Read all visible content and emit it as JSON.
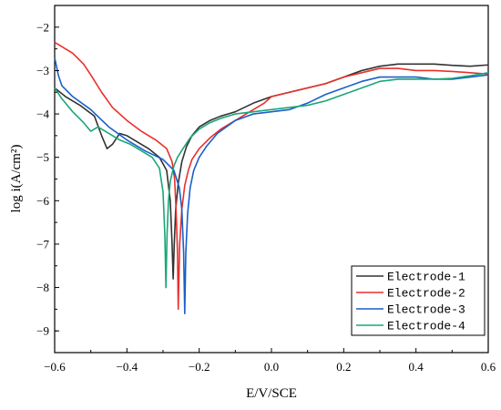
{
  "chart_data": {
    "type": "line",
    "xlabel": "E/V/SCE",
    "ylabel": "log i(A/cm²)",
    "xlim": [
      -0.6,
      0.6
    ],
    "ylim": [
      -9.5,
      -1.5
    ],
    "xticks": [
      -0.6,
      -0.4,
      -0.2,
      0.0,
      0.2,
      0.4,
      0.6
    ],
    "xtick_labels": [
      "−0.6",
      "−0.4",
      "−0.2",
      "0.0",
      "0.2",
      "0.4",
      "0.6"
    ],
    "yticks": [
      -9,
      -8,
      -7,
      -6,
      -5,
      -4,
      -3,
      -2
    ],
    "ytick_labels": [
      "−9",
      "−8",
      "−7",
      "−6",
      "−5",
      "−4",
      "−3",
      "−2"
    ],
    "grid": false,
    "legend_position": "bottom-right",
    "series": [
      {
        "name": "Electrode-1",
        "color": "#333333",
        "x": [
          -0.6,
          -0.57,
          -0.53,
          -0.49,
          -0.47,
          -0.455,
          -0.44,
          -0.42,
          -0.4,
          -0.37,
          -0.34,
          -0.31,
          -0.29,
          -0.28,
          -0.275,
          -0.272,
          -0.269,
          -0.265,
          -0.258,
          -0.248,
          -0.235,
          -0.22,
          -0.2,
          -0.17,
          -0.14,
          -0.1,
          -0.05,
          0.0,
          0.05,
          0.1,
          0.15,
          0.2,
          0.25,
          0.3,
          0.35,
          0.4,
          0.45,
          0.5,
          0.55,
          0.6
        ],
        "y": [
          -3.4,
          -3.6,
          -3.8,
          -4.05,
          -4.5,
          -4.8,
          -4.7,
          -4.45,
          -4.5,
          -4.65,
          -4.8,
          -5.0,
          -5.3,
          -6.0,
          -7.0,
          -7.8,
          -7.0,
          -6.2,
          -5.6,
          -5.1,
          -4.75,
          -4.5,
          -4.3,
          -4.15,
          -4.05,
          -3.95,
          -3.75,
          -3.6,
          -3.5,
          -3.4,
          -3.3,
          -3.15,
          -3.0,
          -2.9,
          -2.85,
          -2.85,
          -2.85,
          -2.88,
          -2.9,
          -2.87
        ]
      },
      {
        "name": "Electrode-2",
        "color": "#e8302c",
        "x": [
          -0.6,
          -0.58,
          -0.55,
          -0.52,
          -0.5,
          -0.47,
          -0.44,
          -0.4,
          -0.36,
          -0.32,
          -0.29,
          -0.275,
          -0.268,
          -0.264,
          -0.26,
          -0.258,
          -0.254,
          -0.248,
          -0.24,
          -0.23,
          -0.22,
          -0.2,
          -0.17,
          -0.14,
          -0.1,
          -0.06,
          -0.02,
          0.0,
          0.05,
          0.1,
          0.15,
          0.2,
          0.25,
          0.3,
          0.35,
          0.4,
          0.45,
          0.5,
          0.55,
          0.6
        ],
        "y": [
          -2.35,
          -2.45,
          -2.6,
          -2.85,
          -3.1,
          -3.5,
          -3.85,
          -4.15,
          -4.4,
          -4.6,
          -4.8,
          -5.1,
          -5.5,
          -6.2,
          -7.2,
          -8.5,
          -7.0,
          -6.2,
          -5.65,
          -5.3,
          -5.05,
          -4.8,
          -4.55,
          -4.35,
          -4.15,
          -3.95,
          -3.75,
          -3.6,
          -3.5,
          -3.4,
          -3.3,
          -3.15,
          -3.05,
          -2.95,
          -2.95,
          -3.0,
          -3.0,
          -3.02,
          -3.05,
          -3.08
        ]
      },
      {
        "name": "Electrode-3",
        "color": "#1a5fc9",
        "x": [
          -0.6,
          -0.59,
          -0.58,
          -0.55,
          -0.5,
          -0.45,
          -0.4,
          -0.35,
          -0.3,
          -0.27,
          -0.255,
          -0.248,
          -0.243,
          -0.24,
          -0.237,
          -0.232,
          -0.225,
          -0.215,
          -0.2,
          -0.18,
          -0.15,
          -0.1,
          -0.05,
          0.0,
          0.05,
          0.1,
          0.15,
          0.2,
          0.25,
          0.3,
          0.35,
          0.4,
          0.45,
          0.5,
          0.55,
          0.6
        ],
        "y": [
          -2.7,
          -3.1,
          -3.35,
          -3.6,
          -3.9,
          -4.3,
          -4.6,
          -4.85,
          -5.05,
          -5.3,
          -5.7,
          -6.2,
          -7.2,
          -8.6,
          -7.2,
          -6.3,
          -5.7,
          -5.3,
          -5.0,
          -4.75,
          -4.45,
          -4.15,
          -4.0,
          -3.95,
          -3.9,
          -3.75,
          -3.55,
          -3.4,
          -3.25,
          -3.15,
          -3.15,
          -3.15,
          -3.2,
          -3.2,
          -3.15,
          -3.1
        ]
      },
      {
        "name": "Electrode-4",
        "color": "#1aa67a",
        "x": [
          -0.6,
          -0.58,
          -0.55,
          -0.52,
          -0.5,
          -0.48,
          -0.45,
          -0.42,
          -0.39,
          -0.36,
          -0.33,
          -0.31,
          -0.3,
          -0.295,
          -0.292,
          -0.289,
          -0.285,
          -0.28,
          -0.27,
          -0.26,
          -0.245,
          -0.225,
          -0.2,
          -0.17,
          -0.14,
          -0.1,
          -0.05,
          0.0,
          0.05,
          0.1,
          0.15,
          0.2,
          0.25,
          0.3,
          0.35,
          0.4,
          0.45,
          0.5,
          0.55,
          0.6
        ],
        "y": [
          -3.4,
          -3.65,
          -3.95,
          -4.2,
          -4.4,
          -4.3,
          -4.45,
          -4.6,
          -4.7,
          -4.85,
          -5.0,
          -5.25,
          -5.8,
          -6.8,
          -8.0,
          -6.8,
          -6.0,
          -5.55,
          -5.2,
          -5.0,
          -4.8,
          -4.55,
          -4.35,
          -4.2,
          -4.1,
          -4.0,
          -3.95,
          -3.9,
          -3.85,
          -3.8,
          -3.7,
          -3.55,
          -3.4,
          -3.25,
          -3.2,
          -3.2,
          -3.2,
          -3.18,
          -3.12,
          -3.05
        ]
      }
    ]
  }
}
